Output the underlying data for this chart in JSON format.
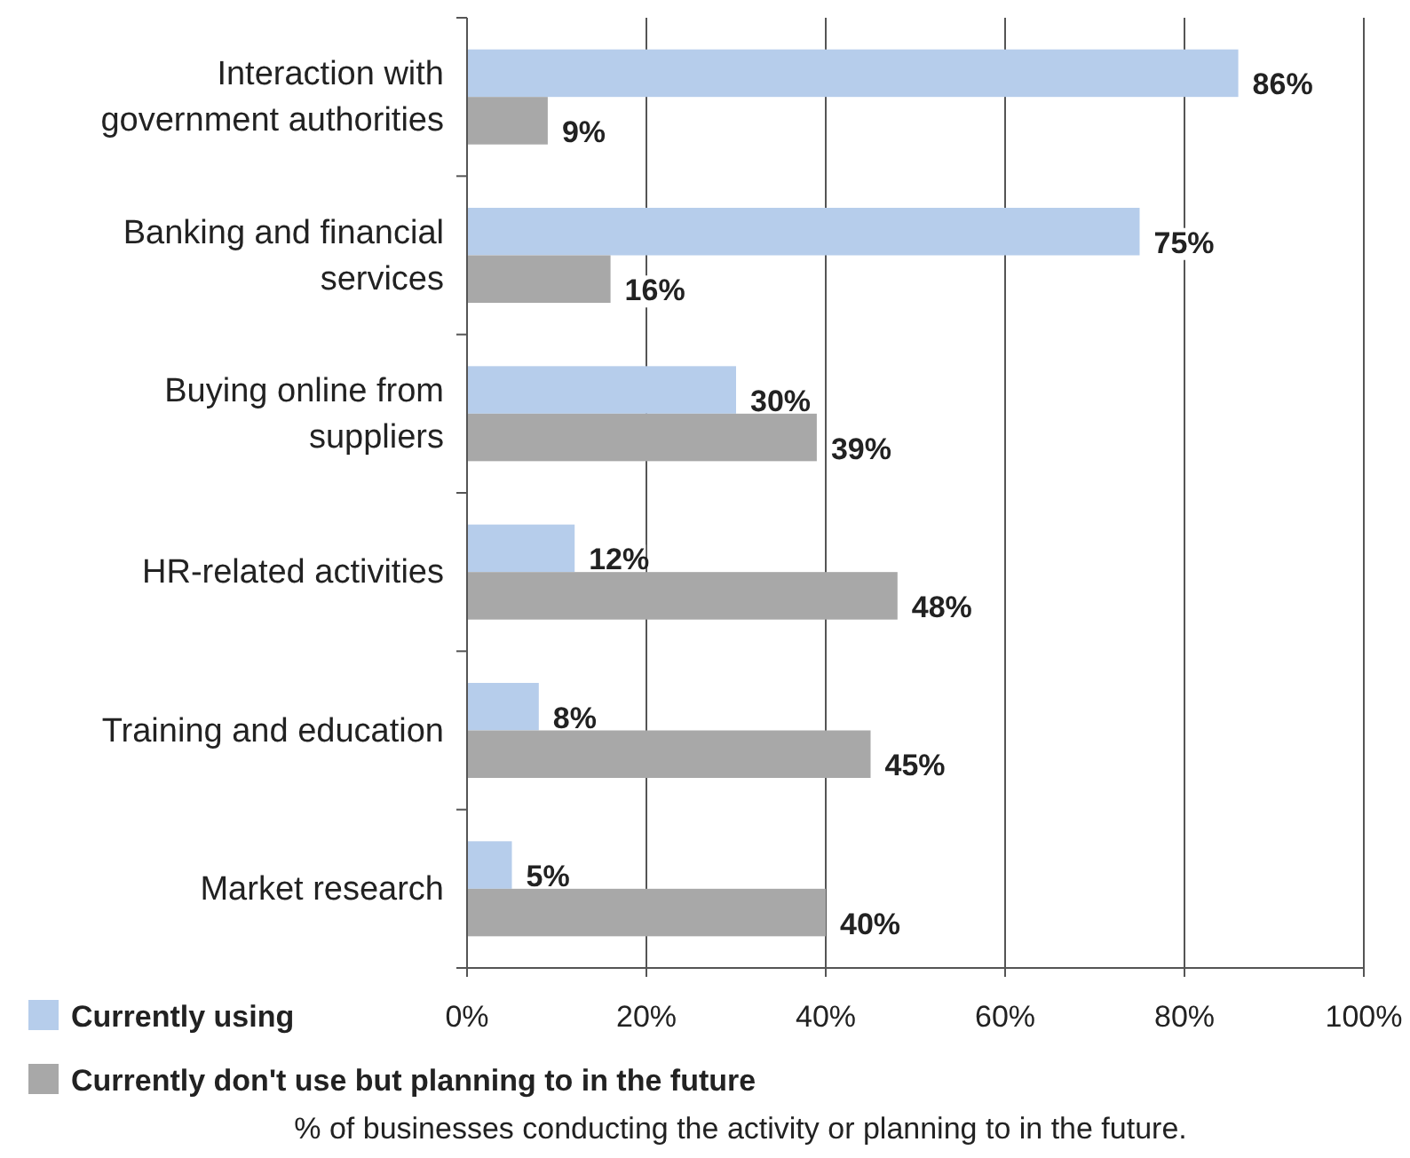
{
  "chart_data": {
    "type": "bar",
    "orientation": "horizontal",
    "categories": [
      "Interaction with government authorities",
      "Banking and financial services",
      "Buying online from suppliers",
      "HR-related activities",
      "Training and education",
      "Market research"
    ],
    "series": [
      {
        "name": "Currently using",
        "color": "#b6cdeb",
        "values": [
          86,
          75,
          30,
          12,
          8,
          5
        ],
        "value_labels": [
          "86%",
          "75%",
          "30%",
          "12%",
          "8%",
          "5%"
        ]
      },
      {
        "name": "Currently don't use but planning to in the future",
        "color": "#a8a8a8",
        "values": [
          9,
          16,
          39,
          48,
          45,
          40
        ],
        "value_labels": [
          "9%",
          "16%",
          "39%",
          "48%",
          "45%",
          "40%"
        ]
      }
    ],
    "xlim": [
      0,
      100
    ],
    "xticks": [
      {
        "value": 0,
        "label": "0%"
      },
      {
        "value": 20,
        "label": "20%"
      },
      {
        "value": 40,
        "label": "40%"
      },
      {
        "value": 60,
        "label": "60%"
      },
      {
        "value": 80,
        "label": "80%"
      },
      {
        "value": 100,
        "label": "100%"
      }
    ],
    "xlabel": "% of businesses conducting the activity or planning to in the future.",
    "grid": "x",
    "legend": "bottom left"
  }
}
